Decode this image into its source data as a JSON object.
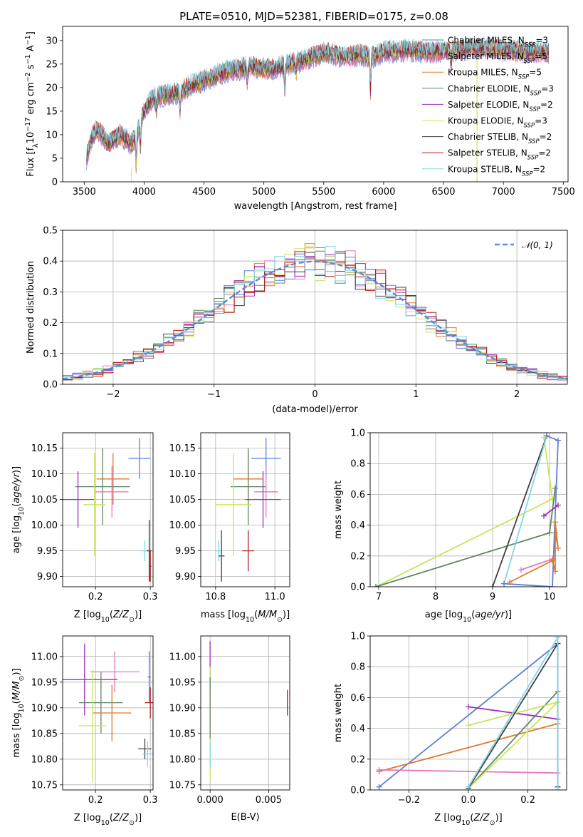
{
  "title": "PLATE=0510, MJD=52381, FIBERID=0175, z=0.08",
  "colors": {
    "chabrier_miles": "#5B7FD8",
    "salpeter_miles": "#E377C2",
    "kroupa_miles": "#DD7A2B",
    "chabrier_elodie": "#5E8663",
    "salpeter_elodie": "#9B2FB8",
    "kroupa_elodie": "#C8E659",
    "chabrier_stelib": "#404040",
    "salpeter_stelib": "#B51A1A",
    "kroupa_stelib": "#82D6E8",
    "grid": "#b0b0b0"
  },
  "chart_data": [
    {
      "type": "line",
      "id": "spectrum",
      "title": "PLATE=0510, MJD=52381, FIBERID=0175, z=0.08",
      "xlabel": "wavelength [Angstrom, rest frame]",
      "ylabel": "Flux [f_λ 10^-17 erg cm^-2 s^-1 A^-1]",
      "xlim": [
        3320,
        7540
      ],
      "ylim": [
        0,
        33
      ],
      "xticks": [
        3500,
        4000,
        4500,
        5000,
        5500,
        6000,
        6500,
        7000,
        7500
      ],
      "yticks": [
        0,
        5,
        10,
        15,
        20,
        25,
        30
      ],
      "grid": false,
      "legend": "top-right",
      "series": [
        {
          "name": "Chabrier MILES, N_SSP=3",
          "key": "chabrier_miles"
        },
        {
          "name": "Salpeter MILES, N_SSP=5",
          "key": "salpeter_miles"
        },
        {
          "name": "Kroupa MILES, N_SSP=5",
          "key": "kroupa_miles"
        },
        {
          "name": "Chabrier ELODIE, N_SSP=3",
          "key": "chabrier_elodie"
        },
        {
          "name": "Salpeter ELODIE, N_SSP=2",
          "key": "salpeter_elodie"
        },
        {
          "name": "Kroupa ELODIE, N_SSP=3",
          "key": "kroupa_elodie"
        },
        {
          "name": "Chabrier STELIB, N_SSP=2",
          "key": "chabrier_stelib"
        },
        {
          "name": "Salpeter STELIB, N_SSP=2",
          "key": "salpeter_stelib"
        },
        {
          "name": "Kroupa STELIB, N_SSP=2",
          "key": "kroupa_stelib"
        }
      ],
      "continuum": {
        "x": [
          3520,
          3560,
          3600,
          3650,
          3700,
          3750,
          3800,
          3850,
          3900,
          3950,
          4000,
          4050,
          4100,
          4200,
          4300,
          4400,
          4500,
          4600,
          4700,
          4800,
          4900,
          5000,
          5100,
          5200,
          5300,
          5400,
          5500,
          5600,
          5700,
          5800,
          5900,
          6000,
          6200,
          6400,
          6600,
          6800,
          7000,
          7200,
          7380
        ],
        "y": [
          5,
          9,
          11,
          10,
          8,
          9,
          10,
          9,
          8,
          11,
          15,
          17,
          18,
          18.5,
          19,
          20.5,
          21.5,
          22.5,
          23.5,
          24,
          24.5,
          24,
          24,
          25,
          25.5,
          26.5,
          27.5,
          27,
          26.5,
          27,
          26.5,
          27.5,
          28,
          27.5,
          28,
          28.5,
          28,
          27.5,
          27.5
        ]
      }
    },
    {
      "type": "histogram",
      "id": "residuals",
      "xlabel": "(data-model)/error",
      "ylabel": "Normed distribution",
      "xlim": [
        -2.5,
        2.5
      ],
      "ylim": [
        0,
        0.5
      ],
      "xticks": [
        -2,
        -1,
        0,
        1,
        2
      ],
      "yticks": [
        0.0,
        0.1,
        0.2,
        0.3,
        0.4,
        0.5
      ],
      "grid": true,
      "legend": "top-right",
      "reference": {
        "name": "𝒩(0, 1)",
        "mu": 0,
        "sigma": 1
      }
    },
    {
      "type": "scatter",
      "id": "age_vs_Z",
      "xlabel": "Z [log10(Z/Z☉)]",
      "ylabel": "age [log10(age/yr)]",
      "xlim": [
        0.14,
        0.305
      ],
      "ylim": [
        9.88,
        10.18
      ],
      "xticks": [
        0.2,
        0.3
      ],
      "yticks": [
        9.9,
        9.95,
        10.0,
        10.05,
        10.1,
        10.15
      ],
      "points": [
        {
          "key": "chabrier_miles",
          "x": 0.28,
          "xerr": 0.02,
          "y": 10.13,
          "yerr": 0.04
        },
        {
          "key": "kroupa_miles",
          "x": 0.232,
          "xerr": 0.03,
          "y": 10.09,
          "yerr": 0.05
        },
        {
          "key": "chabrier_elodie",
          "x": 0.213,
          "xerr": 0.05,
          "y": 10.075,
          "yerr": 0.075
        },
        {
          "key": "salpeter_miles",
          "x": 0.23,
          "xerr": 0.03,
          "y": 10.065,
          "yerr": 0.05
        },
        {
          "key": "salpeter_elodie",
          "x": 0.168,
          "xerr": 0.03,
          "y": 10.05,
          "yerr": 0.055
        },
        {
          "key": "kroupa_elodie",
          "x": 0.198,
          "xerr": 0.02,
          "y": 10.04,
          "yerr": 0.1
        },
        {
          "key": "kroupa_stelib",
          "x": 0.29,
          "xerr": 0.01,
          "y": 9.95,
          "yerr": 0.02
        },
        {
          "key": "chabrier_stelib",
          "x": 0.298,
          "xerr": 0.005,
          "y": 9.95,
          "yerr": 0.06
        },
        {
          "key": "salpeter_stelib",
          "x": 0.3,
          "xerr": 0.002,
          "y": 9.92,
          "yerr": 0.03
        }
      ]
    },
    {
      "type": "scatter",
      "id": "age_vs_mass",
      "xlabel": "mass [log10(M/M☉)]",
      "ylabel": "",
      "xlim": [
        10.75,
        11.05
      ],
      "ylim": [
        9.88,
        10.18
      ],
      "xticks": [
        10.8,
        11.0
      ],
      "yticks": [
        9.9,
        9.95,
        10.0,
        10.05,
        10.1,
        10.15
      ],
      "points": [
        {
          "key": "chabrier_miles",
          "x": 10.97,
          "xerr": 0.05,
          "y": 10.13,
          "yerr": 0.04
        },
        {
          "key": "kroupa_miles",
          "x": 10.91,
          "xerr": 0.05,
          "y": 10.09,
          "yerr": 0.05
        },
        {
          "key": "chabrier_elodie",
          "x": 10.91,
          "xerr": 0.06,
          "y": 10.075,
          "yerr": 0.075
        },
        {
          "key": "salpeter_miles",
          "x": 10.97,
          "xerr": 0.04,
          "y": 10.065,
          "yerr": 0.05
        },
        {
          "key": "salpeter_elodie",
          "x": 10.96,
          "xerr": 0.06,
          "y": 10.05,
          "yerr": 0.055
        },
        {
          "key": "kroupa_elodie",
          "x": 10.86,
          "xerr": 0.06,
          "y": 10.04,
          "yerr": 0.1
        },
        {
          "key": "kroupa_stelib",
          "x": 10.81,
          "xerr": 0.01,
          "y": 9.95,
          "yerr": 0.02
        },
        {
          "key": "chabrier_stelib",
          "x": 10.82,
          "xerr": 0.01,
          "y": 9.94,
          "yerr": 0.05
        },
        {
          "key": "salpeter_stelib",
          "x": 10.91,
          "xerr": 0.02,
          "y": 9.95,
          "yerr": 0.04
        }
      ]
    },
    {
      "type": "line",
      "id": "mass_weight_vs_age",
      "xlabel": "age [log10(age/yr)]",
      "ylabel": "mass weight",
      "xlim": [
        6.85,
        10.3
      ],
      "ylim": [
        0,
        1.0
      ],
      "xticks": [
        7,
        8,
        9,
        10
      ],
      "yticks": [
        0.0,
        0.2,
        0.4,
        0.6,
        0.8,
        1.0
      ],
      "series": [
        {
          "key": "kroupa_elodie",
          "x": [
            6.95,
            10.05,
            9.9
          ],
          "y": [
            0.0,
            0.57,
            0.97
          ]
        },
        {
          "key": "chabrier_elodie",
          "x": [
            6.95,
            10.0,
            10.1
          ],
          "y": [
            0.0,
            0.35,
            0.64
          ]
        },
        {
          "key": "chabrier_stelib",
          "x": [
            9.0,
            9.95
          ],
          "y": [
            0.0,
            0.98
          ]
        },
        {
          "key": "kroupa_stelib",
          "x": [
            9.2,
            9.95
          ],
          "y": [
            0.02,
            0.98
          ]
        },
        {
          "key": "chabrier_miles",
          "x": [
            9.2,
            10.05,
            10.15,
            9.95
          ],
          "y": [
            0.02,
            0.0,
            0.95,
            0.98
          ]
        },
        {
          "key": "salpeter_elodie",
          "x": [
            9.9,
            10.15
          ],
          "y": [
            0.46,
            0.53
          ]
        },
        {
          "key": "salpeter_miles",
          "x": [
            9.5,
            10.05
          ],
          "y": [
            0.11,
            0.18
          ]
        },
        {
          "key": "kroupa_miles",
          "x": [
            9.3,
            10.05,
            10.1,
            10.1,
            10.15,
            10.1
          ],
          "y": [
            0.03,
            0.17,
            0.1,
            0.42,
            0.25,
            0.35
          ]
        }
      ]
    },
    {
      "type": "scatter",
      "id": "mass_vs_Z",
      "xlabel": "Z [log10(Z/Z☉)]",
      "ylabel": "mass [log10(M/M☉)]",
      "xlim": [
        0.14,
        0.305
      ],
      "ylim": [
        10.74,
        11.04
      ],
      "xticks": [
        0.2,
        0.3
      ],
      "yticks": [
        10.75,
        10.8,
        10.85,
        10.9,
        10.95,
        11.0
      ],
      "points": [
        {
          "key": "chabrier_miles",
          "x": 0.298,
          "xerr": 0.003,
          "y": 10.96,
          "yerr": 0.05
        },
        {
          "key": "salpeter_miles",
          "x": 0.235,
          "xerr": 0.045,
          "y": 10.97,
          "yerr": 0.04
        },
        {
          "key": "salpeter_elodie",
          "x": 0.18,
          "xerr": 0.06,
          "y": 10.955,
          "yerr": 0.07
        },
        {
          "key": "chabrier_elodie",
          "x": 0.21,
          "xerr": 0.04,
          "y": 10.91,
          "yerr": 0.06
        },
        {
          "key": "salpeter_stelib",
          "x": 0.3,
          "xerr": 0.01,
          "y": 10.91,
          "yerr": 0.03
        },
        {
          "key": "kroupa_miles",
          "x": 0.23,
          "xerr": 0.035,
          "y": 10.89,
          "yerr": 0.055
        },
        {
          "key": "kroupa_elodie",
          "x": 0.195,
          "xerr": 0.025,
          "y": 10.865,
          "yerr": 0.11
        },
        {
          "key": "chabrier_stelib",
          "x": 0.29,
          "xerr": 0.012,
          "y": 10.82,
          "yerr": 0.02
        },
        {
          "key": "kroupa_stelib",
          "x": 0.295,
          "xerr": 0.01,
          "y": 10.81,
          "yerr": 0.025
        }
      ]
    },
    {
      "type": "scatter",
      "id": "mass_vs_ebv",
      "xlabel": "E(B-V)",
      "ylabel": "",
      "xlim": [
        -0.0008,
        0.0068
      ],
      "ylim": [
        10.74,
        11.04
      ],
      "xticks": [
        0.0,
        0.005
      ],
      "yticks": [
        10.75,
        10.8,
        10.85,
        10.9,
        10.95,
        11.0
      ],
      "points": [
        {
          "key": "salpeter_elodie",
          "x": 0.0,
          "xerr": 0,
          "y": 10.98,
          "yerr": 0.05
        },
        {
          "key": "kroupa_elodie",
          "x": 0.0,
          "xerr": 0,
          "y": 10.87,
          "yerr": 0.11
        },
        {
          "key": "chabrier_elodie",
          "x": 0.0,
          "xerr": 0,
          "y": 10.9,
          "yerr": 0.06
        },
        {
          "key": "kroupa_stelib",
          "x": 0.0,
          "xerr": 0,
          "y": 10.81,
          "yerr": 0.025
        },
        {
          "key": "salpeter_stelib",
          "x": 0.0066,
          "xerr": 0,
          "y": 10.91,
          "yerr": 0.025
        }
      ]
    },
    {
      "type": "line",
      "id": "mass_weight_vs_Z",
      "xlabel": "Z [log10(Z/Z☉)]",
      "ylabel": "mass weight",
      "xlim": [
        -0.33,
        0.33
      ],
      "ylim": [
        0,
        1.0
      ],
      "xticks": [
        -0.2,
        0.0,
        0.2
      ],
      "yticks": [
        0.0,
        0.2,
        0.4,
        0.6,
        0.8,
        1.0
      ],
      "series": [
        {
          "key": "chabrier_miles",
          "x": [
            -0.3,
            0.3
          ],
          "y": [
            0.02,
            0.95
          ]
        },
        {
          "key": "kroupa_miles",
          "x": [
            -0.3,
            0.3
          ],
          "y": [
            0.12,
            0.43
          ]
        },
        {
          "key": "salpeter_miles",
          "x": [
            -0.3,
            0.3
          ],
          "y": [
            0.13,
            0.11
          ]
        },
        {
          "key": "salpeter_elodie",
          "x": [
            0.0,
            0.3
          ],
          "y": [
            0.54,
            0.46
          ]
        },
        {
          "key": "chabrier_elodie",
          "x": [
            0.0,
            0.3
          ],
          "y": [
            0.01,
            0.64
          ]
        },
        {
          "key": "kroupa_elodie",
          "x": [
            0.0,
            0.3,
            0.0
          ],
          "y": [
            0.01,
            0.57,
            0.42
          ]
        },
        {
          "key": "chabrier_stelib",
          "x": [
            0.0,
            0.3,
            0.3
          ],
          "y": [
            0.01,
            0.95,
            0.02
          ]
        },
        {
          "key": "kroupa_stelib",
          "x": [
            0.0,
            0.3,
            0.3
          ],
          "y": [
            0.02,
            0.99,
            0.0
          ]
        }
      ]
    }
  ]
}
